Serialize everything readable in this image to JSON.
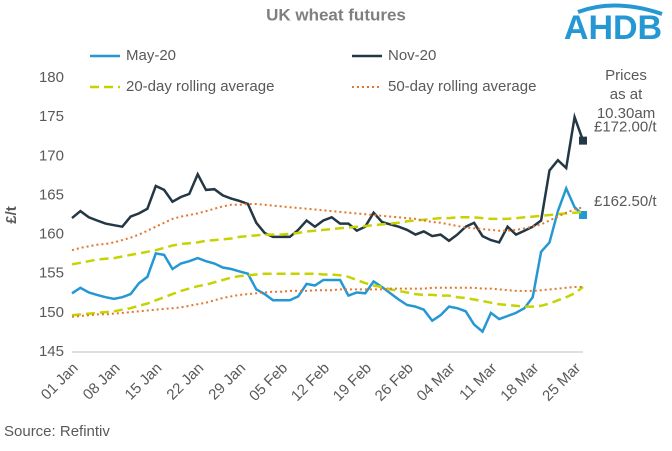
{
  "chart_data": {
    "type": "line",
    "title": "UK wheat futures",
    "y_label": "£/t",
    "source": "Source: Refintiv",
    "logo": "AHDB",
    "annotation": [
      "Prices",
      "as at",
      "10.30am"
    ],
    "categories": [
      "01 Jan",
      null,
      null,
      null,
      null,
      "08 Jan",
      null,
      null,
      null,
      null,
      "15 Jan",
      null,
      null,
      null,
      null,
      "22 Jan",
      null,
      null,
      null,
      null,
      "29 Jan",
      null,
      null,
      null,
      null,
      "05 Feb",
      null,
      null,
      null,
      null,
      "12 Feb",
      null,
      null,
      null,
      null,
      "19 Feb",
      null,
      null,
      null,
      null,
      "26 Feb",
      null,
      null,
      null,
      null,
      "04 Mar",
      null,
      null,
      null,
      null,
      "11 Mar",
      null,
      null,
      null,
      null,
      "18 Mar",
      null,
      null,
      null,
      null,
      "25 Mar",
      null
    ],
    "ylim": [
      145,
      180
    ],
    "yticks": [
      145,
      150,
      155,
      160,
      165,
      170,
      175,
      180
    ],
    "grid": false,
    "series": [
      {
        "name": "May-20",
        "color": "#2598d4",
        "style": "solid",
        "values": [
          152.5,
          153.2,
          152.6,
          152.3,
          152.0,
          151.8,
          152.0,
          152.4,
          153.8,
          154.6,
          157.6,
          157.4,
          155.6,
          156.3,
          156.6,
          157.0,
          156.6,
          156.3,
          155.8,
          155.6,
          155.3,
          155.0,
          153.0,
          152.4,
          151.6,
          151.6,
          151.6,
          152.1,
          153.7,
          153.5,
          154.2,
          154.2,
          154.2,
          152.2,
          152.6,
          152.5,
          154.0,
          153.3,
          152.5,
          151.7,
          151.0,
          150.8,
          150.4,
          149.0,
          149.7,
          150.8,
          150.6,
          150.2,
          148.5,
          147.6,
          150.0,
          149.2,
          149.6,
          150.0,
          150.6,
          152.0,
          157.8,
          159.0,
          163.0,
          165.9,
          163.5,
          162.5
        ],
        "value_labels": [
          null,
          null,
          null,
          null,
          null,
          null,
          null,
          null,
          null,
          null,
          null,
          null,
          null,
          null,
          null,
          null,
          null,
          null,
          null,
          null,
          null,
          null,
          null,
          null,
          null,
          null,
          null,
          null,
          null,
          null,
          null,
          null,
          null,
          null,
          null,
          null,
          null,
          null,
          null,
          null,
          null,
          null,
          null,
          null,
          null,
          null,
          null,
          null,
          null,
          null,
          null,
          null,
          null,
          null,
          null,
          null,
          null,
          null,
          null,
          null,
          null,
          "£162.50/t"
        ]
      },
      {
        "name": "Nov-20",
        "color": "#233745",
        "style": "solid",
        "values": [
          162.1,
          163.0,
          162.2,
          161.8,
          161.4,
          161.2,
          161.0,
          162.3,
          162.7,
          163.3,
          166.2,
          165.7,
          164.2,
          164.8,
          165.2,
          167.7,
          165.7,
          165.8,
          165.0,
          164.6,
          164.3,
          163.9,
          161.5,
          160.2,
          159.7,
          159.7,
          159.7,
          160.6,
          161.8,
          161.0,
          161.8,
          162.2,
          161.4,
          161.4,
          160.5,
          161.0,
          162.8,
          161.6,
          161.3,
          161.0,
          160.6,
          160.0,
          160.4,
          159.8,
          160.0,
          159.2,
          160.0,
          161.0,
          161.5,
          159.8,
          159.3,
          159.0,
          161.0,
          160.0,
          160.5,
          161.0,
          161.8,
          168.2,
          169.5,
          168.5,
          175.0,
          172.0
        ],
        "value_labels": [
          null,
          null,
          null,
          null,
          null,
          null,
          null,
          null,
          null,
          null,
          null,
          null,
          null,
          null,
          null,
          null,
          null,
          null,
          null,
          null,
          null,
          null,
          null,
          null,
          null,
          null,
          null,
          null,
          null,
          null,
          null,
          null,
          null,
          null,
          null,
          null,
          null,
          null,
          null,
          null,
          null,
          null,
          null,
          null,
          null,
          null,
          null,
          null,
          null,
          null,
          null,
          null,
          null,
          null,
          null,
          null,
          null,
          null,
          null,
          null,
          null,
          "£172.00/t"
        ]
      },
      {
        "name": "20-day rolling average",
        "color": "#c7d300",
        "style": "dashed",
        "values": [
          149.7,
          149.8,
          149.9,
          150.0,
          150.1,
          150.2,
          150.4,
          150.6,
          150.9,
          151.2,
          151.6,
          152.0,
          152.4,
          152.8,
          153.1,
          153.4,
          153.6,
          153.9,
          154.2,
          154.5,
          154.7,
          154.8,
          154.9,
          155.0,
          155.0,
          155.0,
          155.0,
          155.0,
          155.0,
          155.0,
          154.9,
          154.9,
          154.8,
          154.6,
          154.2,
          153.8,
          153.5,
          153.3,
          153.0,
          152.8,
          152.6,
          152.4,
          152.3,
          152.3,
          152.2,
          152.2,
          152.0,
          151.9,
          151.7,
          151.5,
          151.3,
          151.1,
          151.0,
          150.9,
          150.8,
          150.8,
          150.9,
          151.2,
          151.6,
          152.0,
          152.5,
          153.3
        ]
      },
      {
        "color": "#c7d300",
        "style": "dashed",
        "values": [
          156.2,
          156.4,
          156.6,
          156.8,
          156.9,
          157.0,
          157.2,
          157.4,
          157.6,
          157.8,
          158.0,
          158.3,
          158.6,
          158.8,
          158.9,
          159.0,
          159.2,
          159.3,
          159.4,
          159.5,
          159.7,
          159.8,
          159.9,
          160.0,
          160.0,
          160.0,
          160.1,
          160.2,
          160.4,
          160.5,
          160.6,
          160.7,
          160.8,
          160.9,
          161.0,
          161.1,
          161.2,
          161.3,
          161.4,
          161.5,
          161.7,
          161.8,
          161.9,
          162.0,
          162.1,
          162.1,
          162.2,
          162.2,
          162.2,
          162.1,
          162.0,
          162.0,
          162.0,
          162.1,
          162.2,
          162.3,
          162.4,
          162.5,
          162.6,
          162.7,
          162.8,
          162.9
        ]
      },
      {
        "name": "50-day rolling average",
        "color": "#e2772f",
        "style": "dotted",
        "values": [
          158.0,
          158.3,
          158.5,
          158.7,
          158.8,
          159.0,
          159.3,
          159.6,
          160.0,
          160.5,
          161.0,
          161.5,
          162.0,
          162.3,
          162.5,
          162.7,
          163.0,
          163.3,
          163.6,
          163.8,
          163.8,
          163.9,
          163.9,
          163.8,
          163.7,
          163.6,
          163.5,
          163.4,
          163.3,
          163.2,
          163.1,
          163.0,
          162.9,
          162.8,
          162.7,
          162.6,
          162.5,
          162.4,
          162.3,
          162.2,
          162.1,
          162.0,
          161.8,
          161.6,
          161.5,
          161.3,
          161.1,
          160.9,
          160.8,
          160.7,
          160.6,
          160.5,
          160.5,
          160.6,
          160.8,
          161.0,
          161.3,
          161.8,
          162.3,
          162.8,
          163.2,
          163.5
        ]
      },
      {
        "color": "#e2772f",
        "style": "dotted",
        "values": [
          149.5,
          149.6,
          149.7,
          149.8,
          149.8,
          149.9,
          150.0,
          150.1,
          150.2,
          150.3,
          150.4,
          150.5,
          150.6,
          150.7,
          150.9,
          151.1,
          151.3,
          151.6,
          151.9,
          152.1,
          152.3,
          152.4,
          152.5,
          152.6,
          152.7,
          152.7,
          152.8,
          152.8,
          152.8,
          152.9,
          152.9,
          152.9,
          153.0,
          153.0,
          153.0,
          153.0,
          153.0,
          153.0,
          153.1,
          153.1,
          153.1,
          153.1,
          153.1,
          153.2,
          153.2,
          153.2,
          153.2,
          153.2,
          153.2,
          153.1,
          153.1,
          153.0,
          152.9,
          152.8,
          152.8,
          152.8,
          152.9,
          153.0,
          153.1,
          153.2,
          153.3,
          153.3
        ]
      }
    ]
  }
}
